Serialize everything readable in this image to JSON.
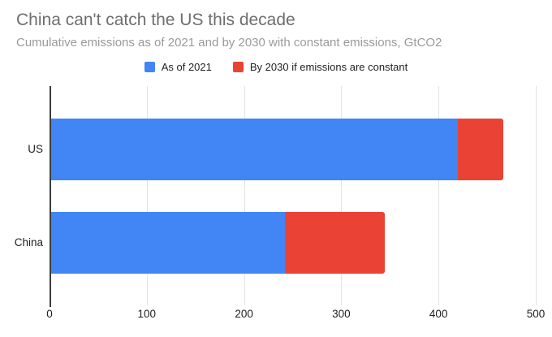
{
  "chart_data": {
    "type": "bar",
    "orientation": "horizontal",
    "stacked": true,
    "title": "China can't catch the US this decade",
    "subtitle": "Cumulative emissions as of 2021 and by 2030 with constant emissions, GtCO2",
    "unit": "GtCO2",
    "categories": [
      "US",
      "China"
    ],
    "series": [
      {
        "name": "As of 2021",
        "color": "#4285F4",
        "values": [
          420,
          242
        ]
      },
      {
        "name": "By 2030 if emissions are constant",
        "color": "#EA4335",
        "values": [
          47,
          103
        ]
      }
    ],
    "totals": [
      467,
      345
    ],
    "xlabel": "",
    "ylabel": "",
    "xlim": [
      0,
      500
    ],
    "xticks": [
      0,
      100,
      200,
      300,
      400,
      500
    ],
    "grid": true,
    "legend_position": "top"
  },
  "colors": {
    "series_as_of_2021": "#4285F4",
    "series_by_2030": "#EA4335",
    "title_text": "#6E6E6E",
    "subtitle_text": "#9A9A9A",
    "axis_text": "#1E1E1E",
    "gridline": "#E3E3E3",
    "axis_line": "#3C3C3C",
    "background": "#FFFFFF"
  }
}
